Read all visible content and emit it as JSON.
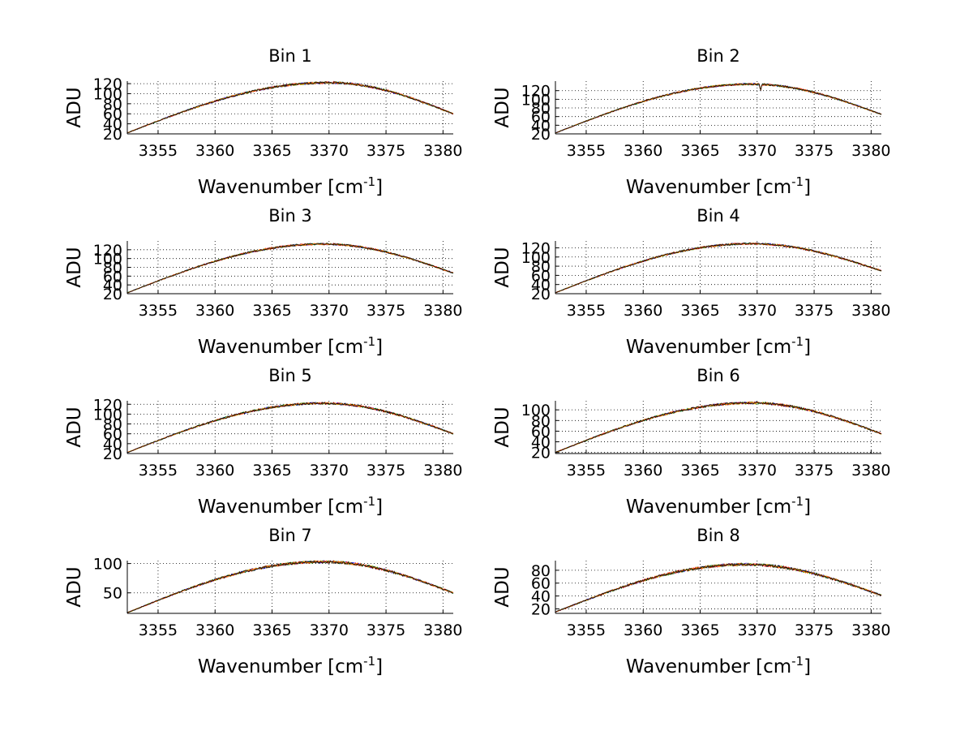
{
  "colors": {
    "background": "#ffffff",
    "axes": "#000000",
    "grid": "#000000",
    "series": [
      "#0000ff",
      "#00a000",
      "#ff0000",
      "#ff9900",
      "#000000"
    ]
  },
  "chart_data": [
    {
      "type": "line",
      "title": "Bin 1",
      "xlabel": "Wavenumber [cm",
      "xlabel_sup": "-1",
      "xlabel_close": "]",
      "ylabel": "ADU",
      "xlim": [
        3352.3,
        3380.9
      ],
      "ylim": [
        20,
        125
      ],
      "xticks": [
        3355,
        3360,
        3365,
        3370,
        3375,
        3380
      ],
      "yticks": [
        20,
        40,
        60,
        80,
        100,
        120
      ],
      "curve": {
        "x_start": 3352.3,
        "x_end": 3380.9,
        "y_start": 22,
        "peak_x": 3370,
        "peak_y": 122,
        "y_end": 60
      },
      "dip": null
    },
    {
      "type": "line",
      "title": "Bin 2",
      "xlabel": "Wavenumber [cm",
      "xlabel_sup": "-1",
      "xlabel_close": "]",
      "ylabel": "ADU",
      "xlim": [
        3352.3,
        3380.9
      ],
      "ylim": [
        20,
        142
      ],
      "xticks": [
        3355,
        3360,
        3365,
        3370,
        3375,
        3380
      ],
      "yticks": [
        20,
        40,
        60,
        80,
        100,
        120
      ],
      "curve": {
        "x_start": 3352.3,
        "x_end": 3380.9,
        "y_start": 22,
        "peak_x": 3369.5,
        "peak_y": 135,
        "y_end": 65
      },
      "dip": {
        "x": 3370.3,
        "depth": 14
      }
    },
    {
      "type": "line",
      "title": "Bin 3",
      "xlabel": "Wavenumber [cm",
      "xlabel_sup": "-1",
      "xlabel_close": "]",
      "ylabel": "ADU",
      "xlim": [
        3352.3,
        3380.9
      ],
      "ylim": [
        20,
        140
      ],
      "xticks": [
        3355,
        3360,
        3365,
        3370,
        3375,
        3380
      ],
      "yticks": [
        20,
        40,
        60,
        80,
        100,
        120
      ],
      "curve": {
        "x_start": 3352.3,
        "x_end": 3380.9,
        "y_start": 22,
        "peak_x": 3369.5,
        "peak_y": 133,
        "y_end": 67
      },
      "dip": null
    },
    {
      "type": "line",
      "title": "Bin 4",
      "xlabel": "Wavenumber [cm",
      "xlabel_sup": "-1",
      "xlabel_close": "]",
      "ylabel": "ADU",
      "xlim": [
        3352.3,
        3380.9
      ],
      "ylim": [
        20,
        135
      ],
      "xticks": [
        3355,
        3360,
        3365,
        3370,
        3375,
        3380
      ],
      "yticks": [
        20,
        40,
        60,
        80,
        100,
        120
      ],
      "curve": {
        "x_start": 3352.3,
        "x_end": 3380.9,
        "y_start": 22,
        "peak_x": 3369.5,
        "peak_y": 129,
        "y_end": 70
      },
      "dip": null
    },
    {
      "type": "line",
      "title": "Bin 5",
      "xlabel": "Wavenumber [cm",
      "xlabel_sup": "-1",
      "xlabel_close": "]",
      "ylabel": "ADU",
      "xlim": [
        3352.3,
        3380.9
      ],
      "ylim": [
        20,
        127
      ],
      "xticks": [
        3355,
        3360,
        3365,
        3370,
        3375,
        3380
      ],
      "yticks": [
        20,
        40,
        60,
        80,
        100,
        120
      ],
      "curve": {
        "x_start": 3352.3,
        "x_end": 3380.9,
        "y_start": 22,
        "peak_x": 3369.5,
        "peak_y": 122,
        "y_end": 60
      },
      "dip": null
    },
    {
      "type": "line",
      "title": "Bin 6",
      "xlabel": "Wavenumber [cm",
      "xlabel_sup": "-1",
      "xlabel_close": "]",
      "ylabel": "ADU",
      "xlim": [
        3352.3,
        3380.9
      ],
      "ylim": [
        18,
        117
      ],
      "xticks": [
        3355,
        3360,
        3365,
        3370,
        3375,
        3380
      ],
      "yticks": [
        20,
        40,
        60,
        80,
        100
      ],
      "curve": {
        "x_start": 3352.3,
        "x_end": 3380.9,
        "y_start": 20,
        "peak_x": 3369.5,
        "peak_y": 113,
        "y_end": 55
      },
      "dip": null
    },
    {
      "type": "line",
      "title": "Bin 7",
      "xlabel": "Wavenumber [cm",
      "xlabel_sup": "-1",
      "xlabel_close": "]",
      "ylabel": "ADU",
      "xlim": [
        3352.3,
        3380.9
      ],
      "ylim": [
        15,
        105
      ],
      "xticks": [
        3355,
        3360,
        3365,
        3370,
        3375,
        3380
      ],
      "yticks": [
        50,
        100
      ],
      "curve": {
        "x_start": 3352.3,
        "x_end": 3380.9,
        "y_start": 16,
        "peak_x": 3369.5,
        "peak_y": 103,
        "y_end": 50
      },
      "dip": null
    },
    {
      "type": "line",
      "title": "Bin 8",
      "xlabel": "Wavenumber [cm",
      "xlabel_sup": "-1",
      "xlabel_close": "]",
      "ylabel": "ADU",
      "xlim": [
        3352.3,
        3380.9
      ],
      "ylim": [
        13,
        95
      ],
      "xticks": [
        3355,
        3360,
        3365,
        3370,
        3375,
        3380
      ],
      "yticks": [
        20,
        40,
        60,
        80
      ],
      "curve": {
        "x_start": 3352.3,
        "x_end": 3380.9,
        "y_start": 15,
        "peak_x": 3369,
        "peak_y": 89,
        "y_end": 41
      },
      "dip": null
    }
  ]
}
